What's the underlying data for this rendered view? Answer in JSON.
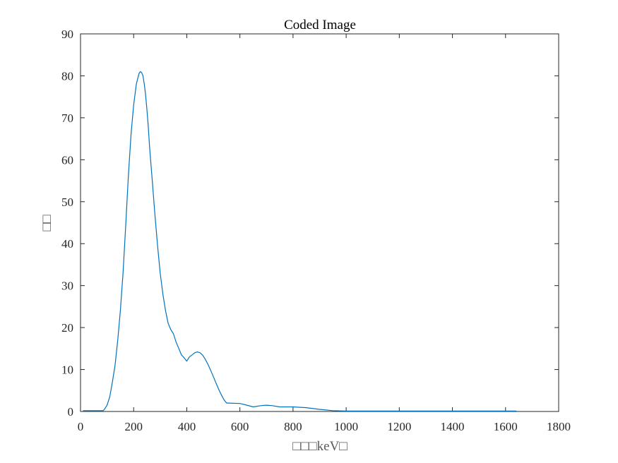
{
  "chart_data": {
    "type": "line",
    "title": "Coded Image",
    "xlabel": "□□□keV□",
    "ylabel": "□□",
    "xlim": [
      0,
      1800
    ],
    "ylim": [
      0,
      90
    ],
    "xticks": [
      0,
      200,
      400,
      600,
      800,
      1000,
      1200,
      1400,
      1600,
      1800
    ],
    "yticks": [
      0,
      10,
      20,
      30,
      40,
      50,
      60,
      70,
      80,
      90
    ],
    "grid": false,
    "legend": "none",
    "series": [
      {
        "color": "#0072bd",
        "x": [
          10,
          40,
          60,
          85,
          90,
          100,
          110,
          120,
          130,
          140,
          150,
          160,
          170,
          180,
          190,
          200,
          210,
          220,
          225,
          230,
          235,
          240,
          245,
          250,
          255,
          260,
          270,
          280,
          290,
          300,
          310,
          320,
          330,
          340,
          350,
          355,
          360,
          370,
          380,
          390,
          400,
          405,
          410,
          420,
          430,
          440,
          450,
          460,
          470,
          480,
          490,
          500,
          510,
          520,
          530,
          540,
          550,
          560,
          600,
          620,
          650,
          680,
          700,
          720,
          750,
          800,
          850,
          900,
          950,
          1000,
          1100,
          1200,
          1300,
          1400,
          1500,
          1600,
          1640
        ],
        "y": [
          0.2,
          0.2,
          0.2,
          0.2,
          0.5,
          1.5,
          3.5,
          7,
          11,
          17,
          24,
          33,
          44,
          56,
          66,
          73,
          78,
          80.5,
          81,
          80.8,
          80,
          78,
          75.5,
          72,
          68,
          63,
          55,
          47,
          39.5,
          33,
          28,
          24,
          21,
          19.5,
          18.5,
          17.5,
          16.5,
          15,
          13.5,
          12.8,
          12,
          12.5,
          13,
          13.5,
          14,
          14.2,
          14,
          13.4,
          12.4,
          11.2,
          9.8,
          8.3,
          6.8,
          5.3,
          4,
          2.8,
          2,
          2,
          1.9,
          1.6,
          1.1,
          1.4,
          1.5,
          1.4,
          1.1,
          1.1,
          0.9,
          0.5,
          0.2,
          0.1,
          0.1,
          0.1,
          0.1,
          0.1,
          0.1,
          0.1,
          0.1
        ]
      }
    ]
  }
}
